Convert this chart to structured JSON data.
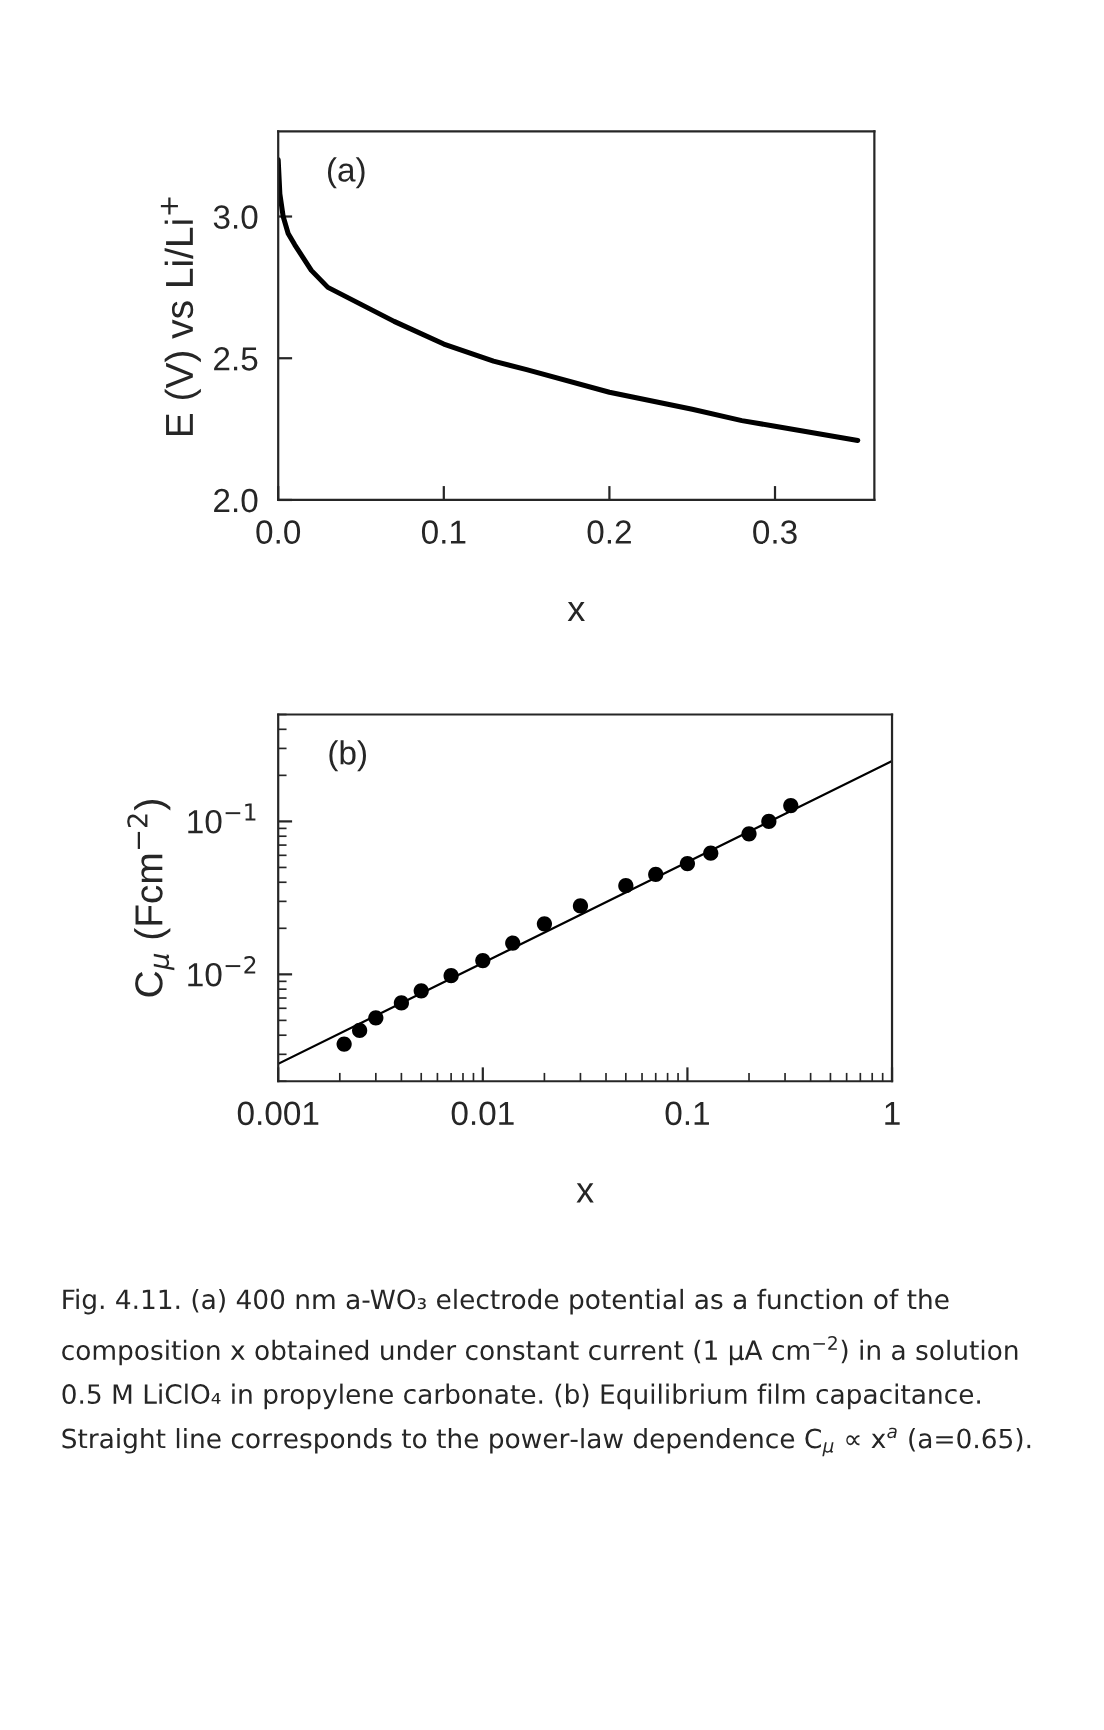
{
  "chart_data": [
    {
      "type": "line",
      "xlabel": "x",
      "ylabel": "E (V) vs Li/Li$^{+}$",
      "annotations": [
        "(a)"
      ],
      "xlim": [
        0,
        0.36
      ],
      "ylim": [
        2.0,
        3.3
      ],
      "xticks": [
        {
          "value": 0,
          "label": "0.0"
        },
        0.1,
        0.2,
        0.3
      ],
      "yticks": [
        {
          "value": 2.0,
          "label": "2.0"
        },
        2.5,
        {
          "value": 3.0,
          "label": "3.0"
        }
      ],
      "grid": false,
      "legend": false,
      "marker": "none",
      "line_style": "solid",
      "series": [
        {
          "color": "#000000",
          "x": [
            0,
            0.001,
            0.003,
            0.006,
            0.01,
            0.02,
            0.03,
            0.05,
            0.07,
            0.1,
            0.13,
            0.15,
            0.2,
            0.25,
            0.28,
            0.3,
            0.35
          ],
          "values": [
            3.2,
            3.08,
            3.0,
            2.94,
            2.9,
            2.81,
            2.75,
            2.69,
            2.63,
            2.55,
            2.49,
            2.46,
            2.38,
            2.32,
            2.28,
            2.26,
            2.21
          ]
        }
      ]
    },
    {
      "type": "scatter",
      "xlabel": "x",
      "ylabel": "C$_{µ}$ (Fcm$^{−2}$)",
      "log": "xy",
      "annotations": [
        "(b)",
        "Fig. 4.11. (a) 400 nm a-WO₃ electrode potential as a function of the composition x obtained under constant current (1 µA cm$^{−2}$) in a solution 0.5 M LiClO₄ in propylene carbonate. (b) Equilibrium film capacitance. Straight line corresponds to the power-law dependence C$_{µ}$ ∝ x$^{a}$ (a=0.65)."
      ],
      "xlim": [
        0.001,
        1
      ],
      "ylim": [
        0.002,
        0.5
      ],
      "xticks": [
        0.001,
        0.01,
        0.1,
        1
      ],
      "yticks": [
        {
          "value": 0.01,
          "label": "10$^{−2}$"
        },
        {
          "value": 0.1,
          "label": "10$^{−1}$"
        }
      ],
      "grid": false,
      "legend": false,
      "series": [
        {
          "type": "scatter",
          "marker": "circle",
          "color": "#000000",
          "x": [
            0.0021,
            0.0025,
            0.003,
            0.004,
            0.005,
            0.007,
            0.01,
            0.014,
            0.02,
            0.03,
            0.05,
            0.07,
            0.1,
            0.13,
            0.2,
            0.25,
            0.32
          ],
          "values": [
            0.0035,
            0.0043,
            0.0052,
            0.0065,
            0.0078,
            0.0098,
            0.0123,
            0.016,
            0.0214,
            0.028,
            0.038,
            0.045,
            0.053,
            0.062,
            0.083,
            0.1,
            0.127
          ]
        },
        {
          "type": "line",
          "marker": "none",
          "color": "#000000",
          "x": [
            0.001,
            1
          ],
          "values": [
            0.0026,
            0.248
          ]
        }
      ]
    }
  ]
}
